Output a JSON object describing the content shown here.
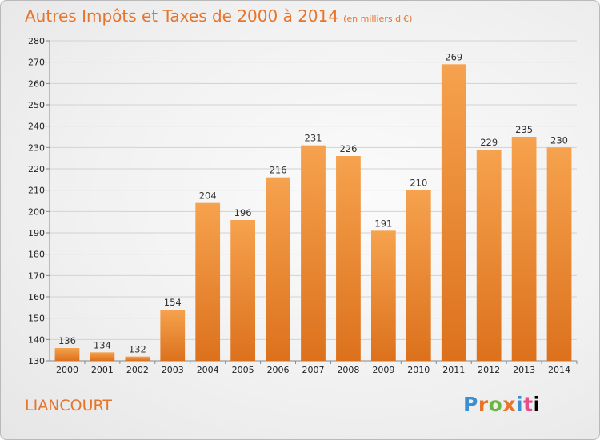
{
  "title": "Autres Impôts et Taxes de 2000 à 2014",
  "subtitle": "(en milliers d'€)",
  "town": "LIANCOURT",
  "logo_text": "Proxiti",
  "colors": {
    "bar_light": "#f6a24e",
    "bar_dark": "#dc711d",
    "title": "#e8742a"
  },
  "chart_data": {
    "type": "bar",
    "categories": [
      "2000",
      "2001",
      "2002",
      "2003",
      "2004",
      "2005",
      "2006",
      "2007",
      "2008",
      "2009",
      "2010",
      "2011",
      "2012",
      "2013",
      "2014"
    ],
    "values": [
      136,
      134,
      132,
      154,
      204,
      196,
      216,
      231,
      226,
      191,
      210,
      269,
      229,
      235,
      230
    ],
    "ylim": [
      130,
      280
    ],
    "yticks": [
      130,
      140,
      150,
      160,
      170,
      180,
      190,
      200,
      210,
      220,
      230,
      240,
      250,
      260,
      270,
      280
    ],
    "grid": true,
    "xlabel": "",
    "ylabel": ""
  }
}
